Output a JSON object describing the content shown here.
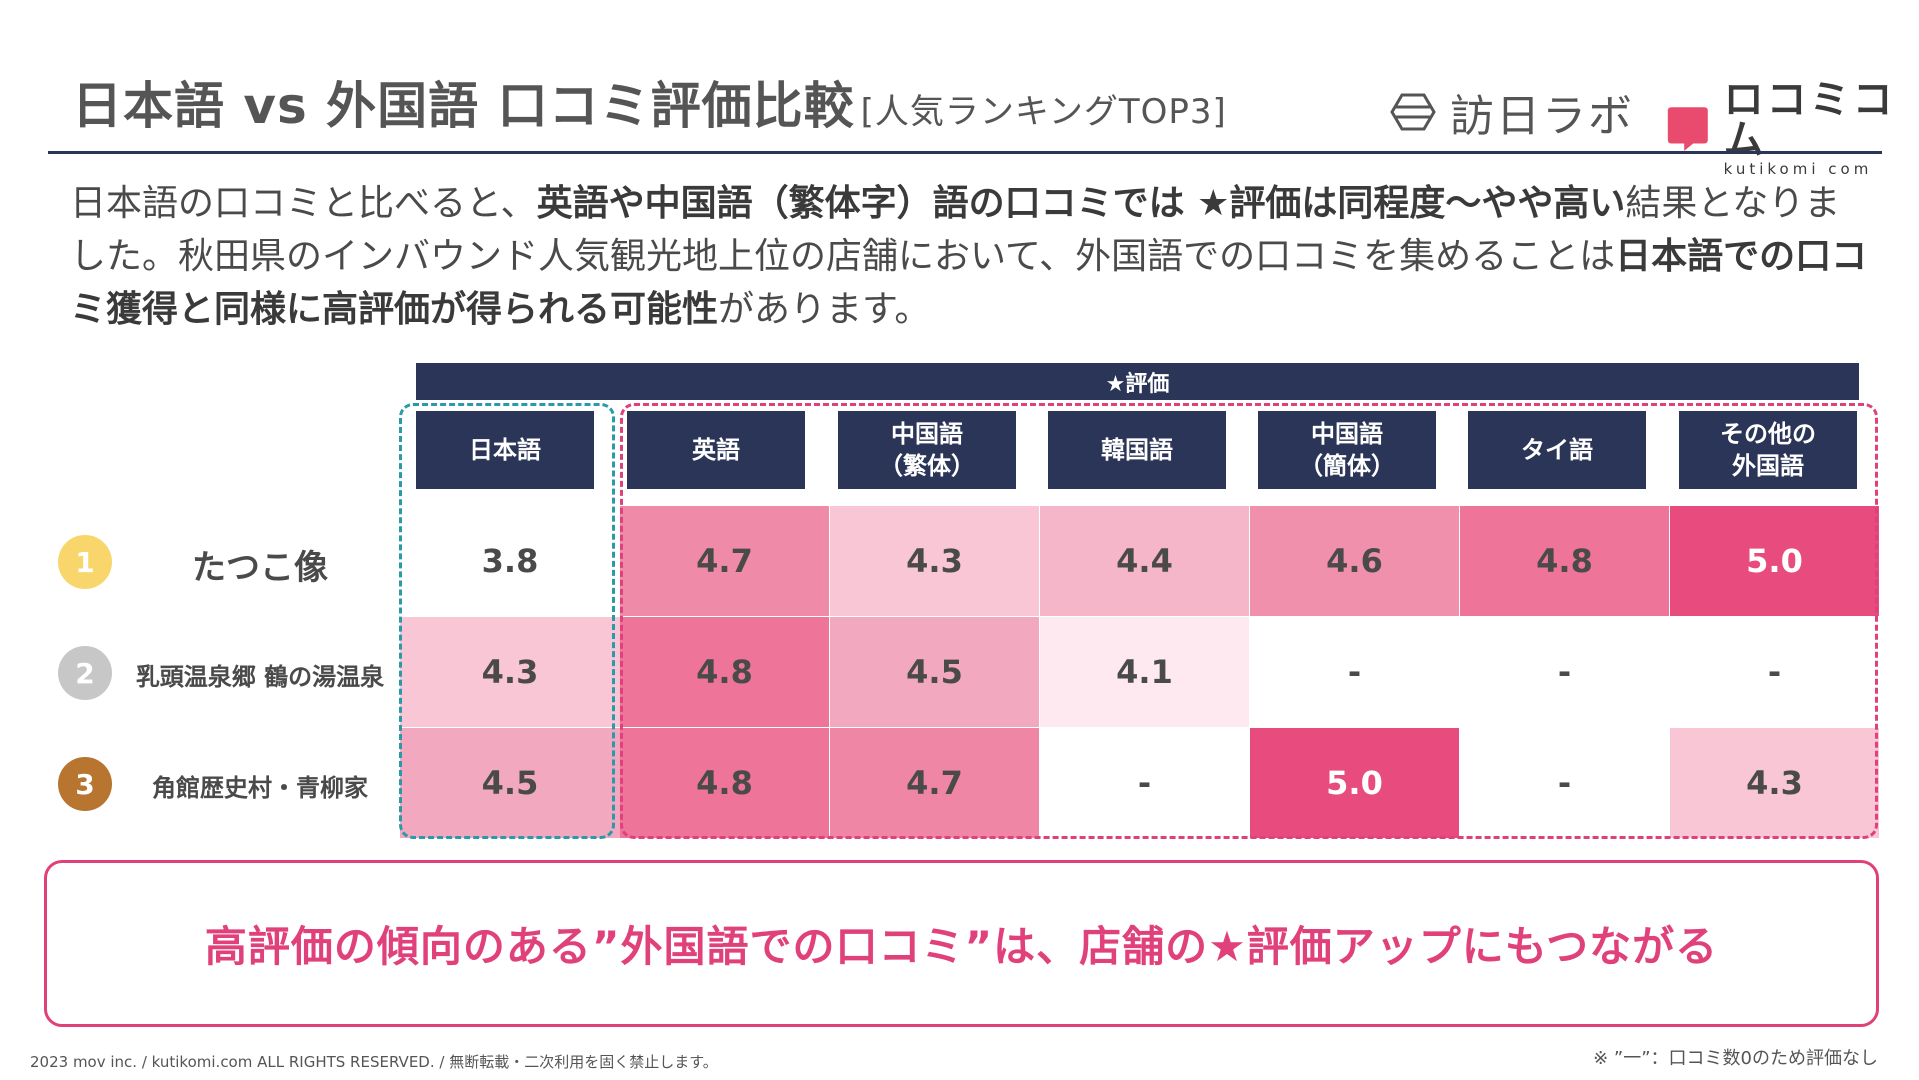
{
  "header": {
    "title": "日本語 vs 外国語 口コミ評価比較",
    "title_sub": "[人気ランキングTOP3]",
    "logo_houjin": "訪日ラボ",
    "logo_kutikomi_main": "ロコミコム",
    "logo_kutikomi_sub": "kutikomi com"
  },
  "intro": {
    "p1": "日本語の口コミと比べると、",
    "b1": "英語や中国語（繁体字）語の口コミでは ★評価は同程度～やや高い",
    "p2": "結果となりました。秋田県のインバウンド人気観光地上位の店舗において、外国語での口コミを集めることは",
    "b2": "日本語での口コミ獲得と同様に高評価が得られる可能性",
    "p3": "があります。"
  },
  "table": {
    "band_label": "★評価",
    "columns": [
      {
        "line1": "日本語",
        "line2": ""
      },
      {
        "line1": "英語",
        "line2": ""
      },
      {
        "line1": "中国語",
        "line2": "（繁体）"
      },
      {
        "line1": "韓国語",
        "line2": ""
      },
      {
        "line1": "中国語",
        "line2": "（簡体）"
      },
      {
        "line1": "タイ語",
        "line2": ""
      },
      {
        "line1": "その他の",
        "line2": "外国語"
      }
    ],
    "rows": [
      {
        "rank": "1",
        "rank_color": "#f9d66b",
        "place": "たつこ像",
        "values": [
          "3.8",
          "4.7",
          "4.3",
          "4.4",
          "4.6",
          "4.8",
          "5.0"
        ],
        "colors": [
          "#ffffff",
          "#ef8aa9",
          "#f8c6d5",
          "#f6b6c9",
          "#f190ad",
          "#ee7499",
          "#e84b7d"
        ],
        "dark": [
          false,
          false,
          false,
          false,
          false,
          false,
          true
        ]
      },
      {
        "rank": "2",
        "rank_color": "#c7c7c7",
        "place": "乳頭温泉郷 鶴の湯温泉",
        "values": [
          "4.3",
          "4.8",
          "4.5",
          "4.1",
          "-",
          "-",
          "-"
        ],
        "colors": [
          "#f8c6d5",
          "#ee7499",
          "#f2a8bf",
          "#fde9ef",
          "#ffffff",
          "#ffffff",
          "#ffffff"
        ],
        "dark": [
          false,
          false,
          false,
          false,
          false,
          false,
          false
        ]
      },
      {
        "rank": "3",
        "rank_color": "#b8752f",
        "place": "角館歴史村・青柳家",
        "values": [
          "4.5",
          "4.8",
          "4.7",
          "-",
          "5.0",
          "-",
          "4.3"
        ],
        "colors": [
          "#f2a8bf",
          "#ee7499",
          "#ef86a6",
          "#ffffff",
          "#e84b7d",
          "#ffffff",
          "#f8c6d5"
        ],
        "dark": [
          false,
          false,
          false,
          false,
          true,
          false,
          false
        ]
      }
    ]
  },
  "callout": "高評価の傾向のある”外国語での口コミ”は、店舗の★評価アップにもつながる",
  "footer": {
    "copyright": "2023 mov inc. / kutikomi.com ALL RIGHTS RESERVED. / 無断転載・二次利用を固く禁止します。",
    "note": "※ ”一”：口コミ数0のため評価なし"
  }
}
